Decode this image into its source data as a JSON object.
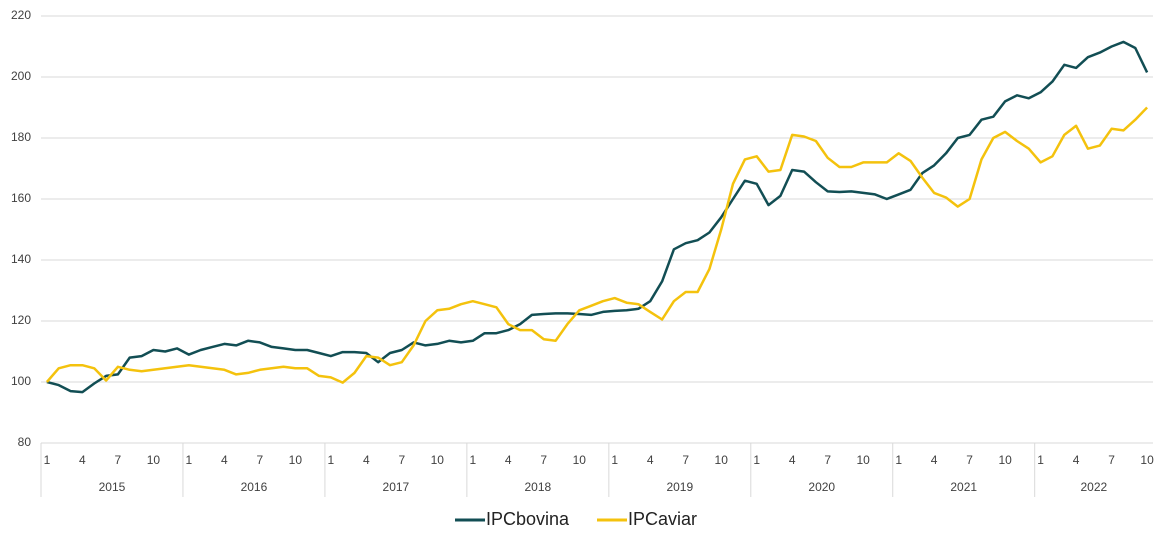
{
  "chart_data": {
    "type": "line",
    "categories": [
      "1",
      null,
      null,
      "4",
      null,
      null,
      "7",
      null,
      null,
      "10",
      null,
      null,
      "1",
      null,
      null,
      "4",
      null,
      null,
      "7",
      null,
      null,
      "10",
      null,
      null,
      "1",
      null,
      null,
      "4",
      null,
      null,
      "7",
      null,
      null,
      "10",
      null,
      null,
      "1",
      null,
      null,
      "4",
      null,
      null,
      "7",
      null,
      null,
      "10",
      null,
      null,
      "1",
      null,
      null,
      "4",
      null,
      null,
      "7",
      null,
      null,
      "10",
      null,
      null,
      "1",
      null,
      null,
      "4",
      null,
      null,
      "7",
      null,
      null,
      "10",
      null,
      null,
      "1",
      null,
      null,
      "4",
      null,
      null,
      "7",
      null,
      null,
      "10",
      null,
      null,
      "1",
      null,
      null,
      "4",
      null,
      null,
      "7",
      null,
      null,
      "10"
    ],
    "years": [
      "2015",
      "2016",
      "2017",
      "2018",
      "2019",
      "2020",
      "2021",
      "2022"
    ],
    "series": [
      {
        "name": "IPCbovina",
        "color": "#124e54",
        "values": [
          100,
          99,
          97,
          96.7,
          99.5,
          102,
          102.5,
          108,
          108.5,
          110.5,
          110,
          111,
          109,
          110.5,
          111.5,
          112.5,
          112,
          113.5,
          113,
          111.5,
          111,
          110.5,
          110.5,
          109.5,
          108.5,
          109.8,
          109.8,
          109.5,
          106.5,
          109.5,
          110.5,
          113,
          112,
          112.5,
          113.5,
          113,
          113.5,
          116,
          116,
          117,
          119,
          122,
          122.3,
          122.5,
          122.5,
          122.3,
          122,
          123,
          123.3,
          123.5,
          124,
          126.5,
          133,
          143.5,
          145.5,
          146.5,
          149,
          154,
          160,
          166,
          165,
          158,
          161,
          169.5,
          169,
          165.5,
          162.5,
          162.3,
          162.5,
          162,
          161.5,
          160,
          161.5,
          163,
          168.5,
          171,
          175,
          180,
          181,
          186,
          187,
          192,
          194,
          193,
          195,
          198.5,
          204,
          203,
          206.5,
          208,
          210,
          211.5,
          209.5,
          201.5
        ]
      },
      {
        "name": "IPCaviar",
        "color": "#f4c20d",
        "values": [
          100,
          104.5,
          105.5,
          105.5,
          104.5,
          100.5,
          105,
          104,
          103.5,
          104,
          104.5,
          105,
          105.5,
          105,
          104.5,
          104,
          102.5,
          103,
          104,
          104.5,
          105,
          104.5,
          104.5,
          102,
          101.5,
          99.8,
          103,
          108.5,
          108,
          105.5,
          106.5,
          112,
          120,
          123.5,
          124,
          125.5,
          126.5,
          125.5,
          124.5,
          119,
          117,
          117,
          114,
          113.5,
          119,
          123.5,
          125,
          126.5,
          127.5,
          126,
          125.5,
          123,
          120.5,
          126.5,
          129.5,
          129.5,
          137,
          150,
          165,
          173,
          174,
          169,
          169.5,
          181,
          180.5,
          179,
          173.5,
          170.5,
          170.5,
          172,
          172,
          172,
          175,
          172.5,
          167,
          162,
          160.5,
          157.5,
          160,
          173,
          180,
          182,
          179,
          176.5,
          172,
          174,
          181,
          184,
          176.5,
          177.5,
          183,
          182.5,
          186,
          190
        ]
      }
    ],
    "ylim": [
      80,
      220
    ],
    "yticks": [
      80,
      100,
      120,
      140,
      160,
      180,
      200,
      220
    ],
    "grid": true,
    "legend": "bottom"
  }
}
